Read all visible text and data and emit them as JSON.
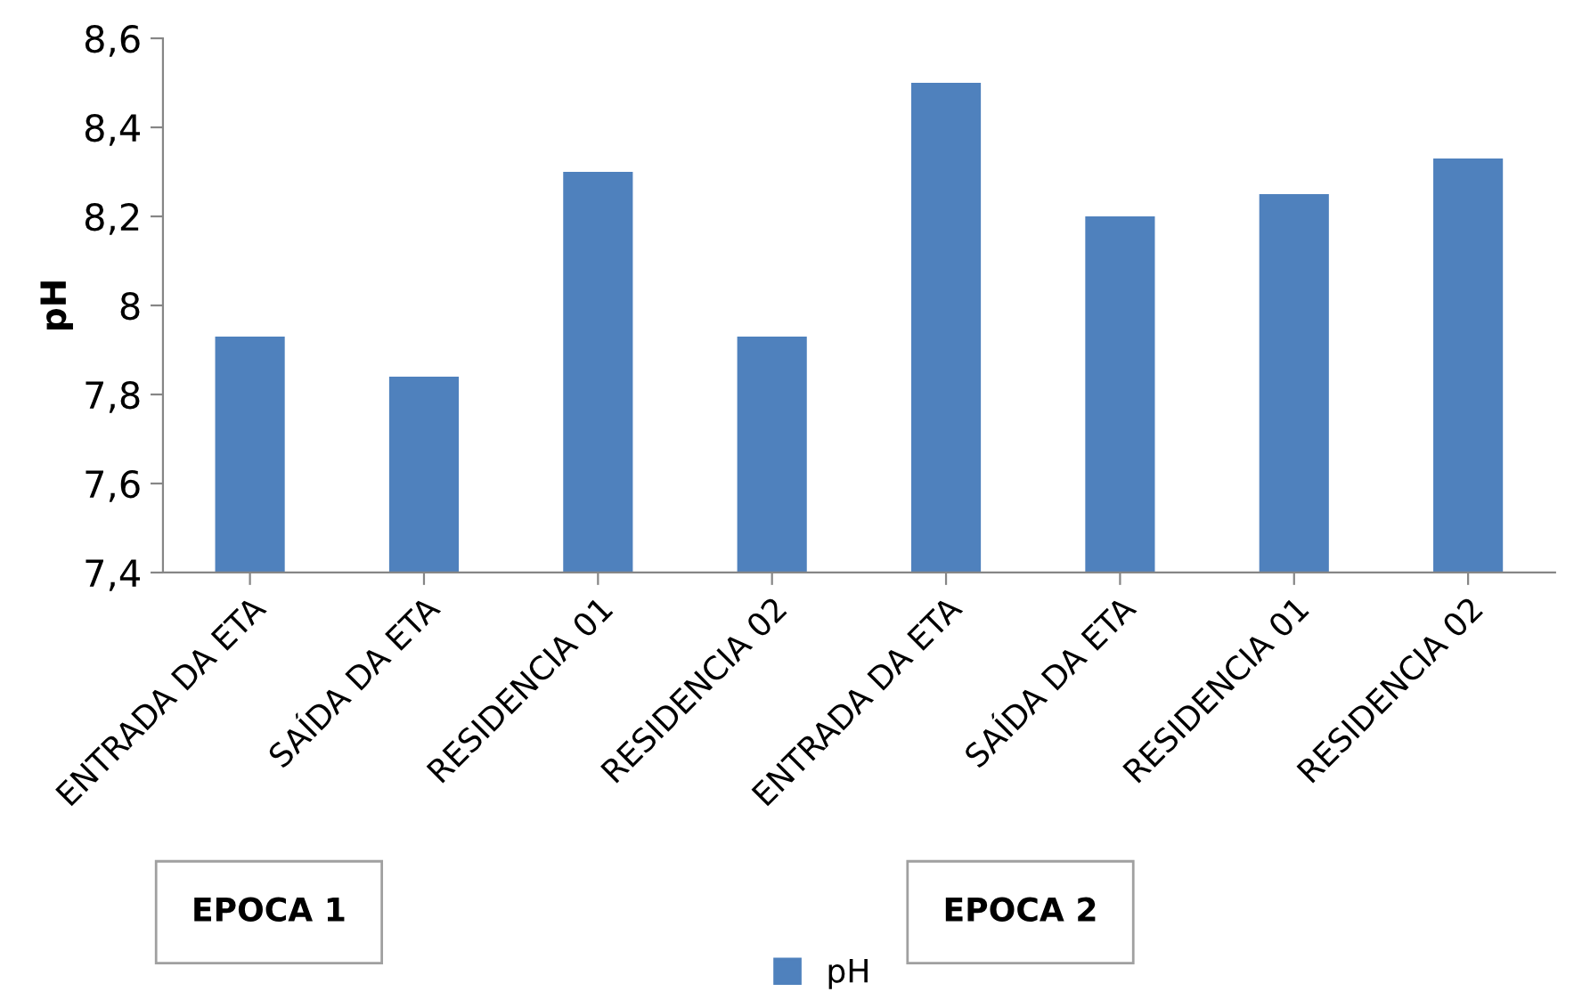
{
  "chart_data": {
    "type": "bar",
    "ylabel": "pH",
    "categories": [
      "ENTRADA DA ETA",
      "SAÍDA DA ETA",
      "RESIDENCIA 01",
      "RESIDENCIA 02",
      "ENTRADA DA ETA",
      "SAÍDA DA ETA",
      "RESIDENCIA 01",
      "RESIDENCIA 02"
    ],
    "series": [
      {
        "name": "pH",
        "color": "#4f81bd",
        "values": [
          7.93,
          7.84,
          8.3,
          7.93,
          8.5,
          8.2,
          8.25,
          8.33
        ]
      }
    ],
    "ylim": [
      7.4,
      8.6
    ],
    "yticks": [
      {
        "value": 7.4,
        "label": "7,4"
      },
      {
        "value": 7.6,
        "label": "7,6"
      },
      {
        "value": 7.8,
        "label": "7,8"
      },
      {
        "value": 8,
        "label": "8"
      },
      {
        "value": 8.2,
        "label": "8,2"
      },
      {
        "value": 8.4,
        "label": "8,4"
      },
      {
        "value": 8.6,
        "label": "8,6"
      }
    ],
    "grid": false,
    "legend": "bottom",
    "annotations": [
      "EPOCA 1",
      "EPOCA 2"
    ]
  }
}
